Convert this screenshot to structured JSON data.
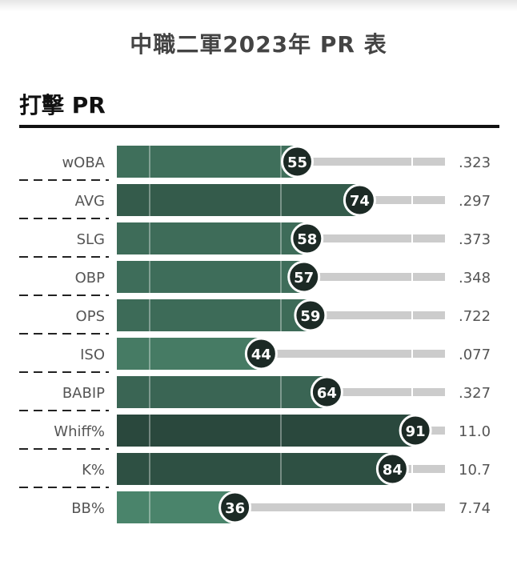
{
  "page": {
    "title": "中職二軍2023年 PR 表",
    "section_title": "打擊 PR"
  },
  "colors": {
    "bar_low": "#4e8a70",
    "bar_high": "#28443a",
    "track": "#cccccc",
    "circle": "#1c2a25",
    "rule": "#111111"
  },
  "chart_data": {
    "type": "bar",
    "orientation": "horizontal",
    "title": "中職二軍2023年 PR 表",
    "section": "打擊 PR",
    "categories": [
      "wOBA",
      "AVG",
      "SLG",
      "OBP",
      "OPS",
      "ISO",
      "BABIP",
      "Whiff%",
      "K%",
      "BB%"
    ],
    "values": [
      55,
      74,
      58,
      57,
      59,
      44,
      64,
      91,
      84,
      36
    ],
    "stat_labels": [
      ".323",
      ".297",
      ".373",
      ".348",
      ".722",
      ".077",
      ".327",
      "11.0",
      "10.7",
      "7.74"
    ],
    "xlim": [
      0,
      100
    ],
    "reference_lines": [
      10,
      50,
      90
    ],
    "legend": "none",
    "grid": false
  }
}
